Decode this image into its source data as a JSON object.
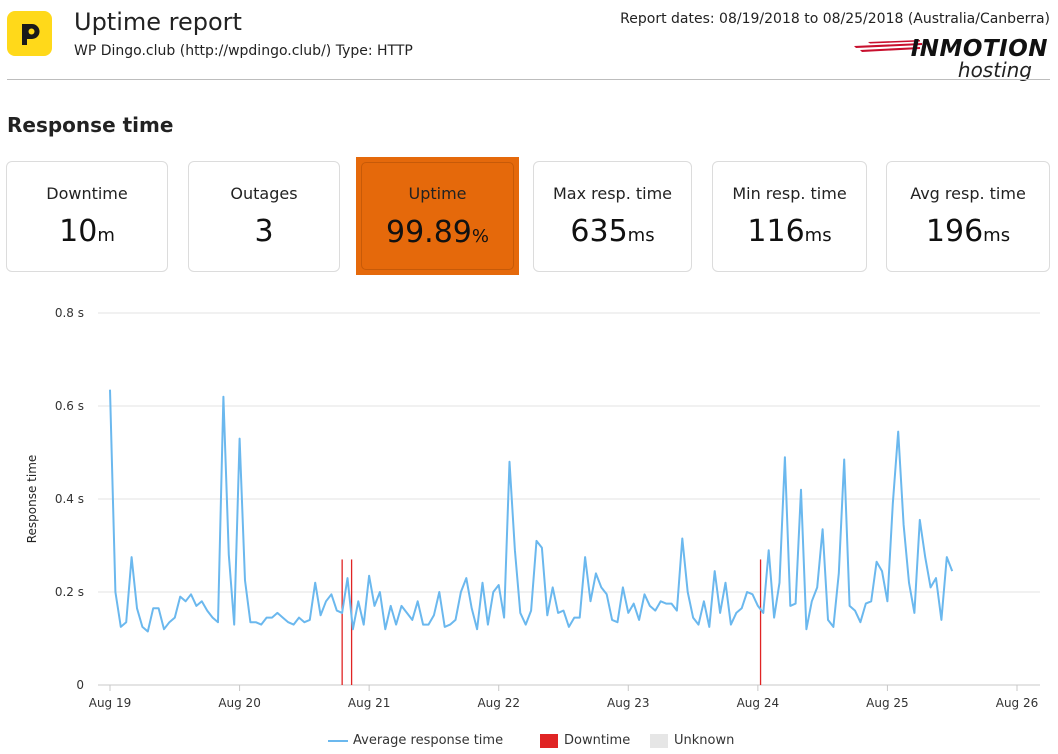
{
  "header": {
    "title": "Uptime report",
    "subtitle": "WP Dingo.club (http://wpdingo.club/) Type: HTTP",
    "report_dates": "Report dates: 08/19/2018 to 08/25/2018 (Australia/Canberra)",
    "brand_name": "INMOTION",
    "brand_sub": "hosting",
    "logo_letter": "P",
    "logo_color": "#ffd91a"
  },
  "section_title": "Response time",
  "stats": [
    {
      "label": "Downtime",
      "value": "10",
      "unit": "m"
    },
    {
      "label": "Outages",
      "value": "3",
      "unit": ""
    },
    {
      "label": "Uptime",
      "value": "99.89",
      "unit": "%"
    },
    {
      "label": "Max resp. time",
      "value": "635",
      "unit": "ms"
    },
    {
      "label": "Min resp. time",
      "value": "116",
      "unit": "ms"
    },
    {
      "label": "Avg resp. time",
      "value": "196",
      "unit": "ms"
    }
  ],
  "colors": {
    "accent": "#e5690b",
    "series": "#6bb8ee",
    "downtime": "#e02424",
    "unknown": "#e6e6e6",
    "grid": "#e3e3e3"
  },
  "chart_data": {
    "type": "line",
    "ylabel": "Response time",
    "xlabel": "",
    "ylim": [
      0,
      0.8
    ],
    "y_ticks": [
      {
        "value": 0,
        "label": "0"
      },
      {
        "value": 0.2,
        "label": "0.2 s"
      },
      {
        "value": 0.4,
        "label": "0.4 s"
      },
      {
        "value": 0.6,
        "label": "0.6 s"
      },
      {
        "value": 0.8,
        "label": "0.8 s"
      }
    ],
    "xlim": [
      "2018-08-19",
      "2018-08-26"
    ],
    "x_ticks": [
      "Aug 19",
      "Aug 20",
      "Aug 21",
      "Aug 22",
      "Aug 23",
      "Aug 24",
      "Aug 25",
      "Aug 26"
    ],
    "grid": true,
    "legend_position": "bottom",
    "legend": [
      "Average response time",
      "Downtime",
      "Unknown"
    ],
    "series": [
      {
        "name": "Average response time",
        "x_start": "2018-08-19",
        "x_step_hours": 1,
        "values": [
          0.635,
          0.2,
          0.125,
          0.135,
          0.275,
          0.165,
          0.125,
          0.115,
          0.165,
          0.165,
          0.12,
          0.135,
          0.145,
          0.19,
          0.18,
          0.195,
          0.17,
          0.18,
          0.16,
          0.145,
          0.135,
          0.62,
          0.28,
          0.13,
          0.53,
          0.225,
          0.135,
          0.135,
          0.13,
          0.145,
          0.145,
          0.155,
          0.145,
          0.135,
          0.13,
          0.145,
          0.135,
          0.14,
          0.22,
          0.15,
          0.18,
          0.195,
          0.16,
          0.155,
          0.23,
          0.12,
          0.18,
          0.13,
          0.235,
          0.17,
          0.2,
          0.12,
          0.17,
          0.13,
          0.17,
          0.155,
          0.14,
          0.18,
          0.13,
          0.13,
          0.15,
          0.2,
          0.125,
          0.13,
          0.14,
          0.2,
          0.23,
          0.165,
          0.12,
          0.22,
          0.13,
          0.2,
          0.215,
          0.145,
          0.48,
          0.29,
          0.155,
          0.13,
          0.16,
          0.31,
          0.295,
          0.15,
          0.21,
          0.155,
          0.16,
          0.125,
          0.145,
          0.145,
          0.275,
          0.18,
          0.24,
          0.21,
          0.195,
          0.14,
          0.135,
          0.21,
          0.155,
          0.175,
          0.14,
          0.195,
          0.17,
          0.16,
          0.18,
          0.175,
          0.175,
          0.16,
          0.315,
          0.2,
          0.145,
          0.13,
          0.18,
          0.125,
          0.245,
          0.155,
          0.22,
          0.13,
          0.155,
          0.165,
          0.2,
          0.195,
          0.17,
          0.155,
          0.29,
          0.145,
          0.22,
          0.49,
          0.17,
          0.175,
          0.42,
          0.12,
          0.18,
          0.21,
          0.335,
          0.14,
          0.125,
          0.24,
          0.485,
          0.17,
          0.16,
          0.135,
          0.175,
          0.18,
          0.265,
          0.245,
          0.18,
          0.39,
          0.545,
          0.345,
          0.22,
          0.155,
          0.355,
          0.275,
          0.21,
          0.23,
          0.14,
          0.275,
          0.245
        ]
      }
    ],
    "downtime_markers": [
      "2018-08-20T19:00",
      "2018-08-20T20:45",
      "2018-08-24T00:30"
    ],
    "downtime_level": 0.27
  }
}
